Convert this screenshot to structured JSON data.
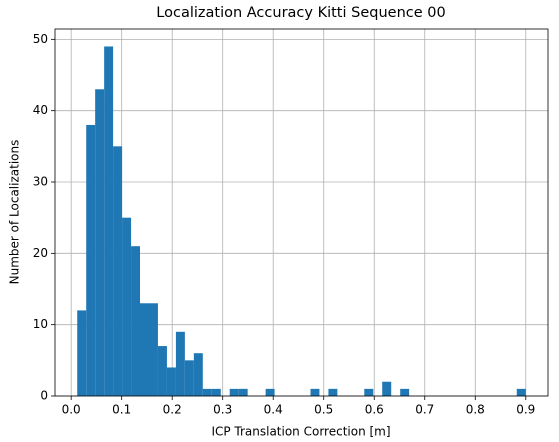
{
  "chart_data": {
    "type": "histogram",
    "title": "Localization Accuracy Kitti Sequence 00",
    "xlabel": "ICP Translation Correction [m]",
    "ylabel": "Number of Localizations",
    "bins": [
      0.012,
      0.0298,
      0.0475,
      0.0653,
      0.083,
      0.1008,
      0.1186,
      0.1363,
      0.1541,
      0.1718,
      0.1896,
      0.2074,
      0.2251,
      0.2429,
      0.2606,
      0.2784,
      0.2962,
      0.3139,
      0.3317,
      0.3494,
      0.3672,
      0.385,
      0.4027,
      0.4205,
      0.4382,
      0.456,
      0.4738,
      0.4915,
      0.5093,
      0.527,
      0.5448,
      0.5626,
      0.5803,
      0.5981,
      0.6158,
      0.6336,
      0.6514,
      0.6691,
      0.6869,
      0.7046,
      0.7224,
      0.7402,
      0.7579,
      0.7757,
      0.7934,
      0.8112,
      0.829,
      0.8467,
      0.8645,
      0.8822,
      0.9
    ],
    "counts": [
      12,
      38,
      43,
      49,
      35,
      25,
      21,
      13,
      13,
      7,
      4,
      9,
      5,
      6,
      1,
      1,
      0,
      1,
      1,
      0,
      0,
      1,
      0,
      0,
      0,
      0,
      1,
      0,
      1,
      0,
      0,
      0,
      1,
      0,
      2,
      0,
      1,
      0,
      0,
      0,
      0,
      0,
      0,
      0,
      0,
      0,
      0,
      0,
      0,
      1
    ],
    "color": "#1f77b4",
    "xlim": [
      -0.032,
      0.944
    ],
    "xticks": [
      {
        "value": 0,
        "label": "0.0"
      },
      0.1,
      0.2,
      0.3,
      0.4,
      0.5,
      0.6,
      0.7,
      0.8,
      0.9
    ],
    "ylim": [
      0,
      51.45
    ],
    "yticks": [
      0,
      10,
      20,
      30,
      40,
      50
    ],
    "grid": true
  }
}
